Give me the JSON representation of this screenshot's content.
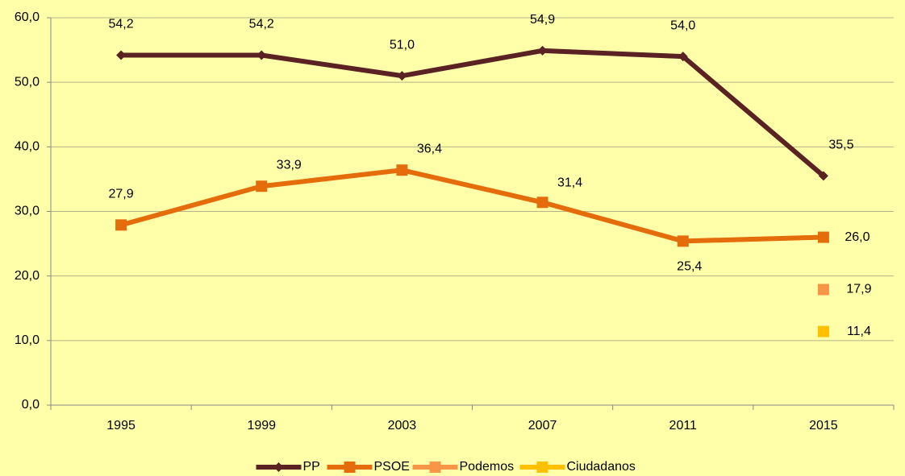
{
  "chart_data": {
    "type": "line",
    "categories": [
      "1995",
      "1999",
      "2003",
      "2007",
      "2011",
      "2015"
    ],
    "series": [
      {
        "name": "PP",
        "color": "#5a2222",
        "marker": "diamond",
        "values": [
          54.2,
          54.2,
          51.0,
          54.9,
          54.0,
          35.5
        ],
        "value_labels": [
          "54,2",
          "54,2",
          "51,0",
          "54,9",
          "54,0",
          "35,5"
        ]
      },
      {
        "name": "PSOE",
        "color": "#e46c0a",
        "marker": "square",
        "values": [
          27.9,
          33.9,
          36.4,
          31.4,
          25.4,
          26.0
        ],
        "value_labels": [
          "27,9",
          "33,9",
          "36,4",
          "31,4",
          "25,4",
          "26,0"
        ]
      },
      {
        "name": "Podemos",
        "color": "#f79646",
        "marker": "square",
        "values": [
          null,
          null,
          null,
          null,
          null,
          17.9
        ],
        "value_labels": [
          null,
          null,
          null,
          null,
          null,
          "17,9"
        ]
      },
      {
        "name": "Ciudadanos",
        "color": "#ffc000",
        "marker": "square",
        "values": [
          null,
          null,
          null,
          null,
          null,
          11.4
        ],
        "value_labels": [
          null,
          null,
          null,
          null,
          null,
          "11,4"
        ]
      }
    ],
    "ylim": [
      0,
      60
    ],
    "yticks": [
      {
        "value": 0,
        "label": "0,0"
      },
      {
        "value": 10,
        "label": "10,0"
      },
      {
        "value": 20,
        "label": "20,0"
      },
      {
        "value": 30,
        "label": "30,0"
      },
      {
        "value": 40,
        "label": "40,0"
      },
      {
        "value": 50,
        "label": "50,0"
      },
      {
        "value": 60,
        "label": "60,0"
      }
    ],
    "grid": true,
    "legend": "bottom"
  }
}
